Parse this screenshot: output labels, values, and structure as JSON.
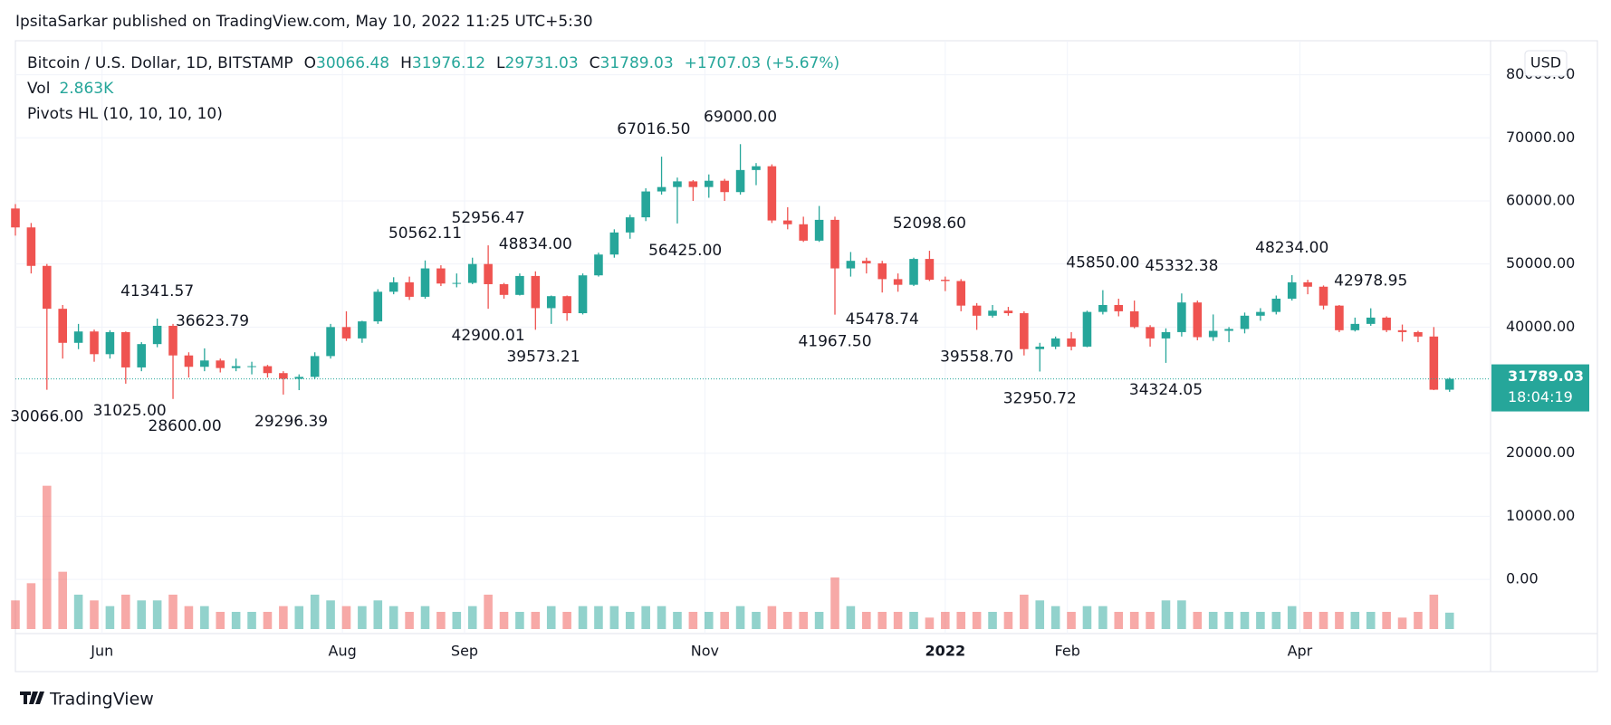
{
  "header": {
    "text": "IpsitaSarkar published on TradingView.com, May 10, 2022 11:25 UTC+5:30"
  },
  "footer": {
    "brand": "TradingView"
  },
  "chart_data": {
    "type": "candlestick",
    "legend": {
      "symbol": "Bitcoin / U.S. Dollar, 1D, BITSTAMP",
      "o": "O",
      "h": "H",
      "l": "L",
      "c": "C",
      "change": "+1707.03 (+5.67%)",
      "vol_name": "Vol",
      "vol_value": "2.863K",
      "indicator": "Pivots HL (10, 10, 10, 10)"
    },
    "currency": "USD",
    "countdown": "18:04:19",
    "up_color": "#26a69a",
    "down_color": "#ef5350",
    "candles": [
      [
        58800,
        59500,
        54500,
        55800
      ],
      [
        55800,
        56500,
        48500,
        49700
      ],
      [
        49700,
        50000,
        30066,
        42900
      ],
      [
        42900,
        43500,
        35000,
        37500
      ],
      [
        37500,
        40500,
        36500,
        39300
      ],
      [
        39300,
        39600,
        34500,
        35700
      ],
      [
        35700,
        39500,
        35000,
        39200
      ],
      [
        39200,
        39300,
        31025,
        33600
      ],
      [
        33600,
        37600,
        33000,
        37300
      ],
      [
        37300,
        41341,
        36800,
        40200
      ],
      [
        40200,
        40500,
        28600,
        35500
      ],
      [
        35500,
        36000,
        32000,
        33700
      ],
      [
        33700,
        36623,
        33000,
        34700
      ],
      [
        34700,
        35000,
        32800,
        33500
      ],
      [
        33500,
        35000,
        33000,
        33800
      ],
      [
        33800,
        34500,
        32500,
        33800
      ],
      [
        33800,
        34000,
        32000,
        32700
      ],
      [
        32700,
        33000,
        29296,
        31800
      ],
      [
        31800,
        32500,
        30000,
        32100
      ],
      [
        32100,
        36000,
        31800,
        35400
      ],
      [
        35400,
        40500,
        35000,
        40000
      ],
      [
        40000,
        42500,
        37800,
        38200
      ],
      [
        38200,
        41000,
        37500,
        40900
      ],
      [
        40900,
        46000,
        40500,
        45600
      ],
      [
        45600,
        47900,
        45200,
        47100
      ],
      [
        47100,
        48000,
        44300,
        44800
      ],
      [
        44800,
        50562,
        44500,
        49300
      ],
      [
        49300,
        49800,
        46500,
        46900
      ],
      [
        46900,
        48500,
        46300,
        47000
      ],
      [
        47000,
        51000,
        46800,
        50000
      ],
      [
        50000,
        52956,
        42900,
        46800
      ],
      [
        46800,
        47000,
        44500,
        45100
      ],
      [
        45100,
        48500,
        45000,
        48100
      ],
      [
        48100,
        48834,
        39573,
        43000
      ],
      [
        43000,
        45000,
        40500,
        44900
      ],
      [
        44900,
        45000,
        41000,
        42200
      ],
      [
        42200,
        48500,
        42000,
        48200
      ],
      [
        48200,
        51800,
        48000,
        51500
      ],
      [
        51500,
        55500,
        51000,
        55000
      ],
      [
        55000,
        57800,
        54000,
        57400
      ],
      [
        57400,
        62000,
        56800,
        61500
      ],
      [
        61500,
        67016,
        61000,
        62200
      ],
      [
        62200,
        63700,
        56425,
        63100
      ],
      [
        63100,
        63300,
        60000,
        62200
      ],
      [
        62200,
        64200,
        60500,
        63200
      ],
      [
        63200,
        63500,
        60000,
        61400
      ],
      [
        61400,
        69000,
        61000,
        64900
      ],
      [
        64900,
        66000,
        62500,
        65500
      ],
      [
        65500,
        65800,
        56500,
        56900
      ],
      [
        56900,
        59000,
        55500,
        56300
      ],
      [
        56300,
        57500,
        53500,
        53700
      ],
      [
        53700,
        59200,
        53500,
        57000
      ],
      [
        57000,
        57500,
        41967,
        49300
      ],
      [
        49300,
        51900,
        48000,
        50500
      ],
      [
        50500,
        51000,
        48500,
        50100
      ],
      [
        50100,
        50500,
        45478,
        47600
      ],
      [
        47600,
        48500,
        45600,
        46700
      ],
      [
        46700,
        51000,
        46500,
        50800
      ],
      [
        50800,
        52098,
        47300,
        47500
      ],
      [
        47500,
        48000,
        45700,
        47300
      ],
      [
        47300,
        47600,
        42500,
        43400
      ],
      [
        43400,
        43800,
        39558,
        41800
      ],
      [
        41800,
        43500,
        41500,
        42600
      ],
      [
        42600,
        43200,
        41800,
        42200
      ],
      [
        42200,
        42500,
        35500,
        36500
      ],
      [
        36500,
        37500,
        32950,
        36900
      ],
      [
        36900,
        38500,
        36500,
        38200
      ],
      [
        38200,
        39200,
        36300,
        36900
      ],
      [
        36900,
        42600,
        36800,
        42400
      ],
      [
        42400,
        45850,
        42000,
        43500
      ],
      [
        43500,
        44500,
        41700,
        42500
      ],
      [
        42500,
        44200,
        39800,
        40000
      ],
      [
        40000,
        40300,
        36900,
        38200
      ],
      [
        38200,
        39800,
        34324,
        39200
      ],
      [
        39200,
        45332,
        38500,
        43900
      ],
      [
        43900,
        44200,
        37900,
        38400
      ],
      [
        38400,
        42000,
        37800,
        39400
      ],
      [
        39400,
        40000,
        37600,
        39700
      ],
      [
        39700,
        42300,
        39000,
        41800
      ],
      [
        41800,
        43000,
        41000,
        42400
      ],
      [
        42400,
        45000,
        42000,
        44500
      ],
      [
        44500,
        48234,
        44200,
        47100
      ],
      [
        47100,
        47500,
        45200,
        46400
      ],
      [
        46400,
        46600,
        42800,
        43400
      ],
      [
        43400,
        43500,
        39200,
        39500
      ],
      [
        39500,
        41500,
        39300,
        40500
      ],
      [
        40500,
        42978,
        40200,
        41500
      ],
      [
        41500,
        41700,
        39200,
        39500
      ],
      [
        39500,
        40400,
        37700,
        39200
      ],
      [
        39200,
        39400,
        37600,
        38500
      ],
      [
        38500,
        40000,
        30000,
        30066
      ],
      [
        30066.48,
        31976.12,
        29731.03,
        31789.03
      ]
    ],
    "volumes": [
      5,
      8,
      25,
      10,
      6,
      5,
      4,
      6,
      5,
      5,
      6,
      4,
      4,
      3,
      3,
      3,
      3,
      4,
      4,
      6,
      5,
      4,
      4,
      5,
      4,
      3,
      4,
      3,
      3,
      4,
      6,
      3,
      3,
      3,
      4,
      3,
      4,
      4,
      4,
      3,
      4,
      4,
      3,
      3,
      3,
      3,
      4,
      3,
      4,
      3,
      3,
      3,
      9,
      4,
      3,
      3,
      3,
      3,
      2,
      3,
      3,
      3,
      3,
      3,
      6,
      5,
      4,
      3,
      4,
      4,
      3,
      3,
      3,
      5,
      5,
      3,
      3,
      3,
      3,
      3,
      3,
      4,
      3,
      3,
      3,
      3,
      3,
      3,
      2,
      3,
      6,
      2.863
    ],
    "volume_lim": [
      0,
      30
    ],
    "xlim": [
      0,
      93.6
    ],
    "xticks": [
      {
        "value": 5.5,
        "label": "Jun"
      },
      {
        "value": 20.75,
        "label": "Aug"
      },
      {
        "value": 28.5,
        "label": "Sep"
      },
      {
        "value": 43.75,
        "label": "Nov"
      },
      {
        "value": 59,
        "label": "2022"
      },
      {
        "value": 66.75,
        "label": "Feb"
      },
      {
        "value": 81.5,
        "label": "Apr"
      }
    ],
    "ylim": [
      -8600,
      85400
    ],
    "yticks": [
      {
        "value": 80000,
        "label": "80000.00"
      },
      {
        "value": 70000,
        "label": "70000.00"
      },
      {
        "value": 60000,
        "label": "60000.00"
      },
      {
        "value": 50000,
        "label": "50000.00"
      },
      {
        "value": 40000,
        "label": "40000.00"
      },
      {
        "value": 20000,
        "label": "20000.00"
      },
      {
        "value": 10000,
        "label": "10000.00"
      },
      {
        "value": 0,
        "label": "0.00"
      }
    ],
    "pivots": [
      {
        "x": 2,
        "value": 30066,
        "label": "30066.00",
        "kind": "low"
      },
      {
        "x": 7.25,
        "value": 31025,
        "label": "31025.00",
        "kind": "low"
      },
      {
        "x": 9,
        "value": 41341.57,
        "label": "41341.57",
        "kind": "high"
      },
      {
        "x": 10.75,
        "value": 28600,
        "label": "28600.00",
        "kind": "low"
      },
      {
        "x": 12.5,
        "value": 36623.79,
        "label": "36623.79",
        "kind": "high"
      },
      {
        "x": 17.5,
        "value": 29296.39,
        "label": "29296.39",
        "kind": "low"
      },
      {
        "x": 26,
        "value": 50562.11,
        "label": "50562.11",
        "kind": "high"
      },
      {
        "x": 30,
        "value": 52956.47,
        "label": "52956.47",
        "kind": "high"
      },
      {
        "x": 30,
        "value": 42900.01,
        "label": "42900.01",
        "kind": "low"
      },
      {
        "x": 33,
        "value": 48834,
        "label": "48834.00",
        "kind": "high"
      },
      {
        "x": 33.5,
        "value": 39573.21,
        "label": "39573.21",
        "kind": "low"
      },
      {
        "x": 40.5,
        "value": 67016.5,
        "label": "67016.50",
        "kind": "high"
      },
      {
        "x": 42.5,
        "value": 56425,
        "label": "56425.00",
        "kind": "low"
      },
      {
        "x": 46,
        "value": 69000,
        "label": "69000.00",
        "kind": "high"
      },
      {
        "x": 52,
        "value": 41967.5,
        "label": "41967.50",
        "kind": "low"
      },
      {
        "x": 55,
        "value": 45478.74,
        "label": "45478.74",
        "kind": "low"
      },
      {
        "x": 58,
        "value": 52098.6,
        "label": "52098.60",
        "kind": "high"
      },
      {
        "x": 61,
        "value": 39558.7,
        "label": "39558.70",
        "kind": "low"
      },
      {
        "x": 65,
        "value": 32950.72,
        "label": "32950.72",
        "kind": "low"
      },
      {
        "x": 69,
        "value": 45850,
        "label": "45850.00",
        "kind": "high"
      },
      {
        "x": 73,
        "value": 34324.05,
        "label": "34324.05",
        "kind": "low"
      },
      {
        "x": 74,
        "value": 45332.38,
        "label": "45332.38",
        "kind": "high"
      },
      {
        "x": 81,
        "value": 48234,
        "label": "48234.00",
        "kind": "high"
      },
      {
        "x": 86,
        "value": 42978.95,
        "label": "42978.95",
        "kind": "high"
      }
    ]
  }
}
